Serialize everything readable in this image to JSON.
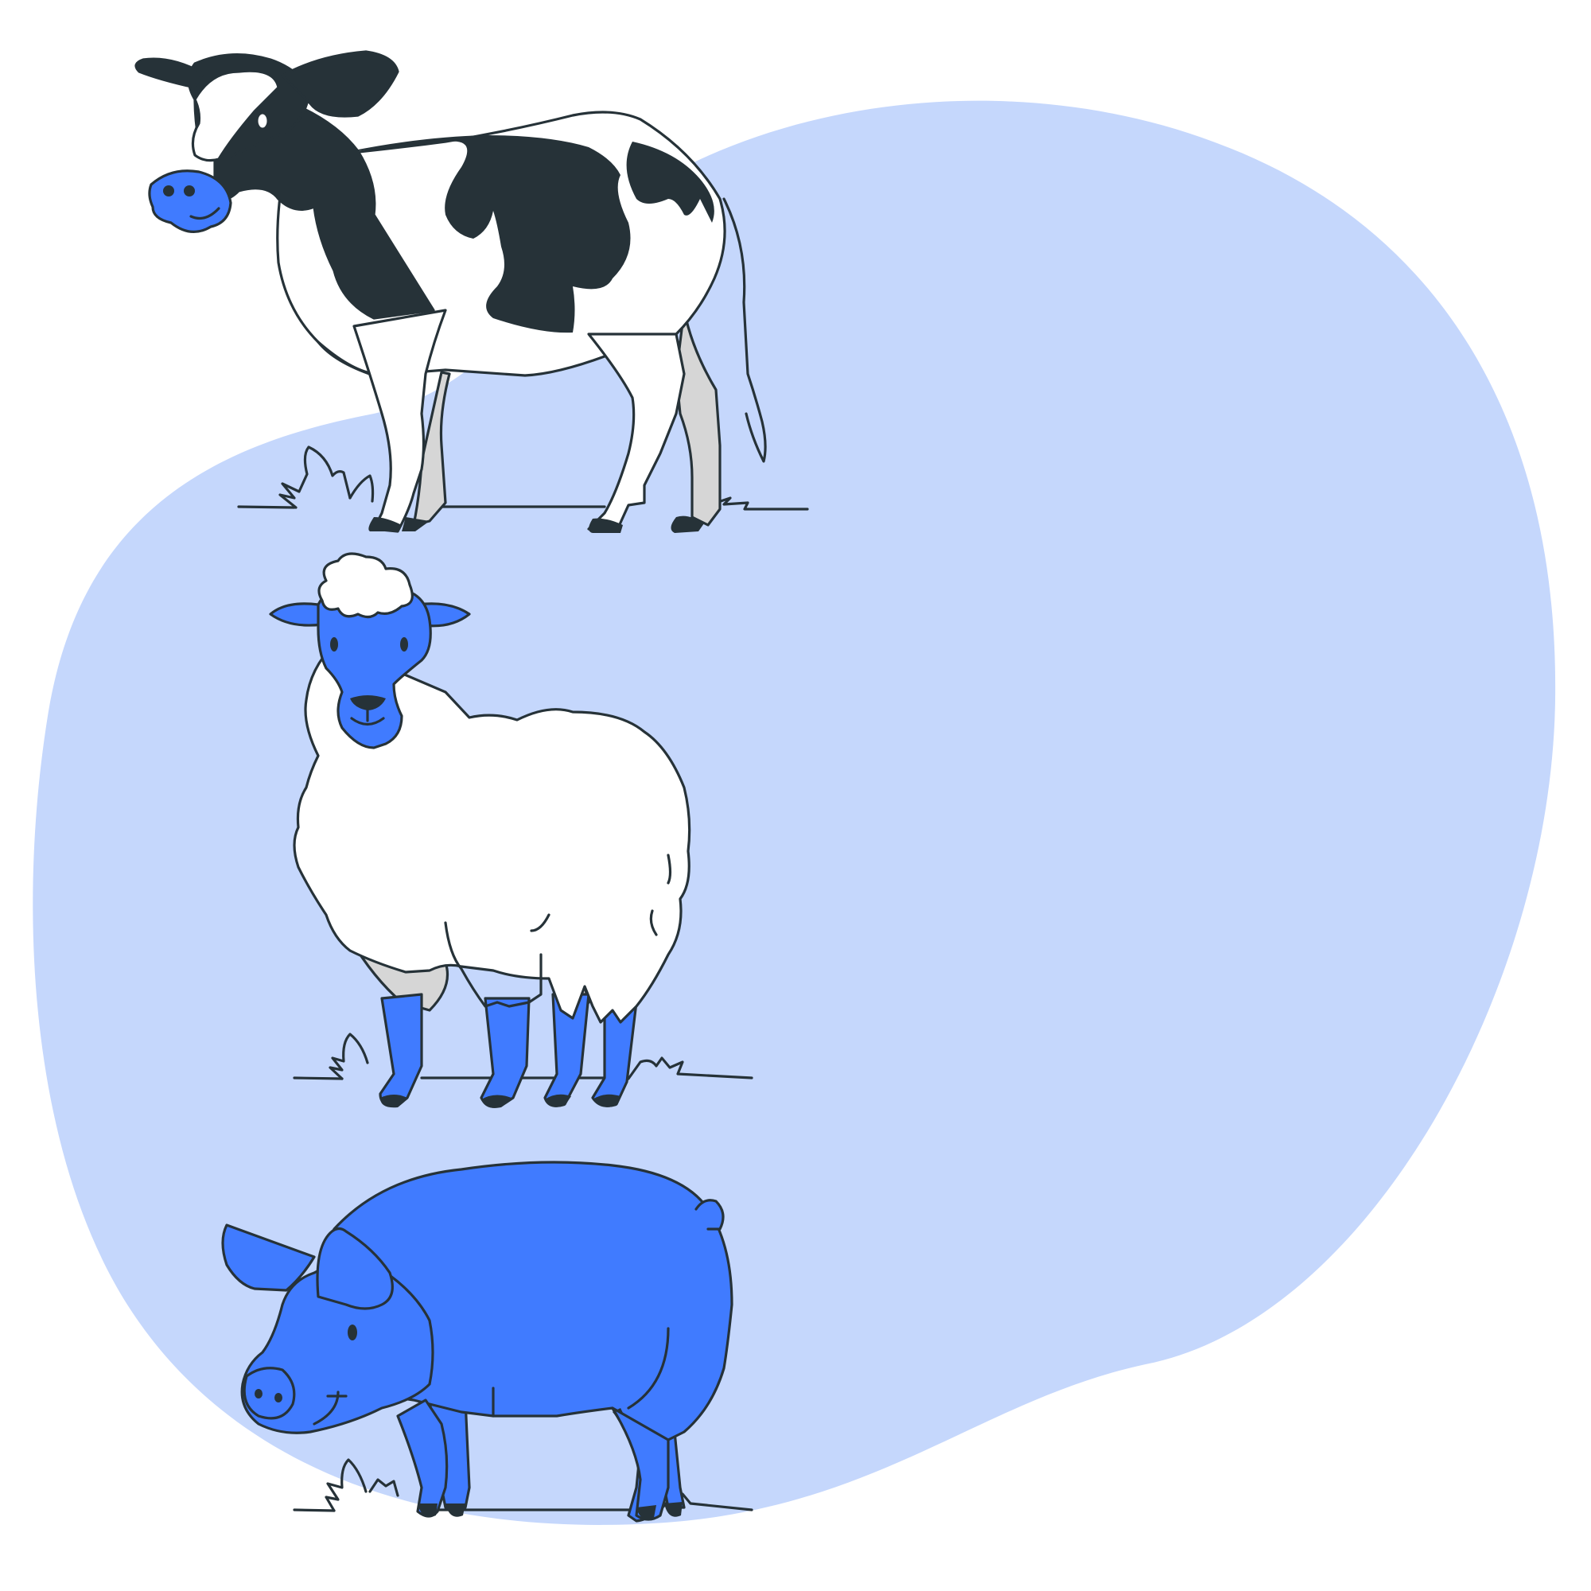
{
  "illustration": {
    "subject": [
      "cow",
      "sheep",
      "pig"
    ],
    "colors": {
      "background": "#ffffff",
      "blob": "#c5d7fc",
      "accent": "#407bff",
      "outline": "#263238",
      "white": "#ffffff",
      "shade": "#d6d6d6"
    }
  }
}
